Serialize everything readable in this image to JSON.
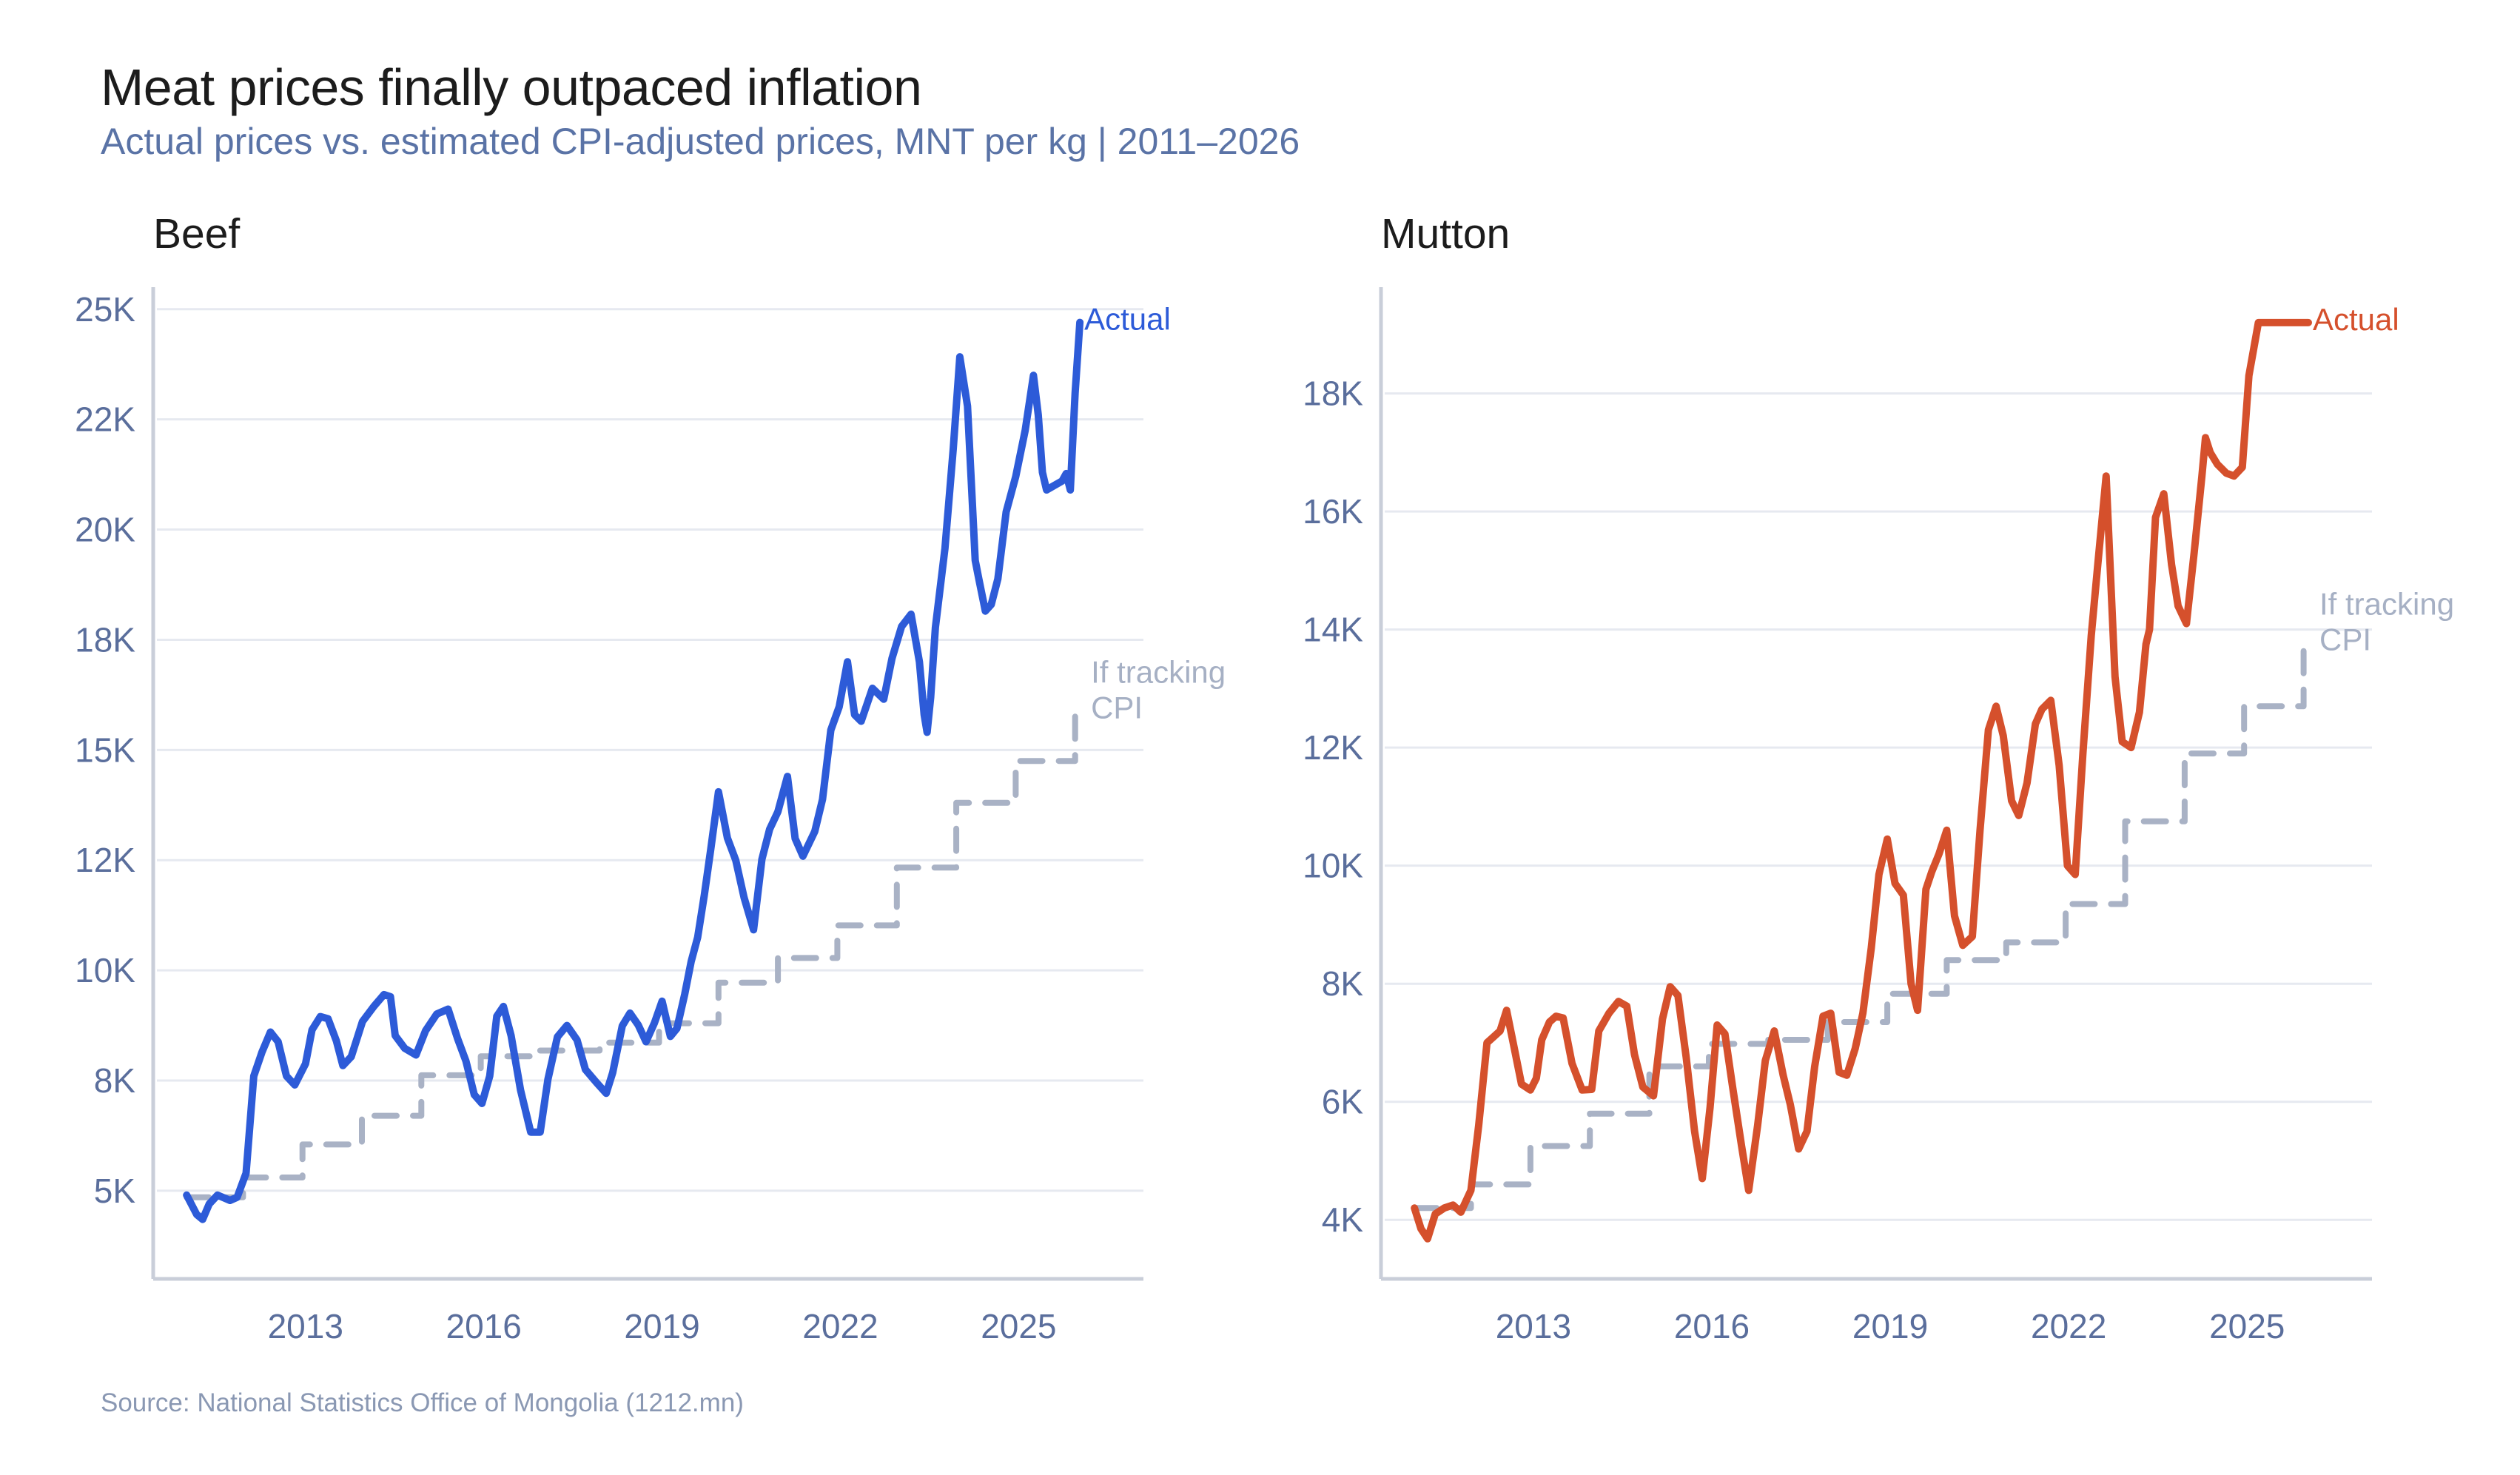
{
  "title": "Meat prices finally outpaced inflation",
  "subtitle": "Actual prices vs. estimated CPI-adjusted prices, MNT per kg | 2011–2026",
  "source": "Source: National Statistics Office of Mongolia (1212.mn)",
  "colors": {
    "beef": "#2d5bd8",
    "mutton": "#d5502c",
    "cpi": "#a9b2c5",
    "tick_text": "#5a6e9c",
    "subtitle": "#5a73a6"
  },
  "chart_data": [
    {
      "type": "line",
      "title": "Beef",
      "xlabel": "",
      "ylabel": "",
      "xlim": [
        2010.5,
        2027.1
      ],
      "ylim": [
        3000,
        25500
      ],
      "grid": true,
      "legend": "direct labels at line ends (right)",
      "x_ticks": [
        2013,
        2016,
        2019,
        2022,
        2025
      ],
      "x_tick_labels": [
        "2013",
        "2016",
        "2019",
        "2022",
        "2025"
      ],
      "y_ticks": [
        5000,
        7500,
        10000,
        12500,
        15000,
        17500,
        20000,
        22500,
        25000
      ],
      "y_tick_labels": [
        "5K",
        "8K",
        "10K",
        "12K",
        "15K",
        "18K",
        "20K",
        "22K",
        "25K"
      ],
      "series": [
        {
          "name": "Actual",
          "label": "Actual",
          "style": "solid",
          "x": [
            2011.0,
            2011.17,
            2011.27,
            2011.38,
            2011.52,
            2011.73,
            2011.85,
            2012.0,
            2012.13,
            2012.27,
            2012.41,
            2012.54,
            2012.68,
            2012.82,
            2013.0,
            2013.11,
            2013.25,
            2013.38,
            2013.52,
            2013.63,
            2013.77,
            2013.96,
            2014.15,
            2014.32,
            2014.43,
            2014.51,
            2014.67,
            2014.86,
            2015.02,
            2015.21,
            2015.4,
            2015.56,
            2015.7,
            2015.84,
            2015.97,
            2016.1,
            2016.22,
            2016.33,
            2016.46,
            2016.62,
            2016.79,
            2016.95,
            2017.08,
            2017.24,
            2017.4,
            2017.57,
            2017.71,
            2017.9,
            2018.06,
            2018.17,
            2018.33,
            2018.46,
            2018.6,
            2018.73,
            2018.87,
            2019.0,
            2019.14,
            2019.25,
            2019.38,
            2019.49,
            2019.6,
            2019.71,
            2019.82,
            2019.95,
            2020.1,
            2020.24,
            2020.38,
            2020.54,
            2020.68,
            2020.81,
            2020.95,
            2021.11,
            2021.24,
            2021.37,
            2021.57,
            2021.7,
            2021.84,
            2021.98,
            2022.12,
            2022.24,
            2022.35,
            2022.54,
            2022.73,
            2022.87,
            2023.03,
            2023.19,
            2023.33,
            2023.41,
            2023.46,
            2023.52,
            2023.6,
            2023.76,
            2023.9,
            2024.01,
            2024.14,
            2024.27,
            2024.33,
            2024.44,
            2024.54,
            2024.65,
            2024.79,
            2024.95,
            2025.11,
            2025.25,
            2025.33,
            2025.4,
            2025.47,
            2025.6,
            2025.73,
            2025.8,
            2025.87,
            2025.95,
            2026.03
          ],
          "values": [
            4900,
            4460,
            4350,
            4700,
            4900,
            4780,
            4850,
            5400,
            7600,
            8150,
            8600,
            8380,
            7600,
            7400,
            7880,
            8650,
            8950,
            8900,
            8400,
            7840,
            8040,
            8840,
            9180,
            9450,
            9400,
            8520,
            8230,
            8080,
            8630,
            9010,
            9120,
            8450,
            7940,
            7180,
            6980,
            7600,
            8960,
            9180,
            8520,
            7280,
            6330,
            6330,
            7530,
            8490,
            8750,
            8420,
            7750,
            7450,
            7210,
            7680,
            8740,
            9030,
            8760,
            8380,
            8800,
            9300,
            8500,
            8680,
            9450,
            10200,
            10750,
            11700,
            12750,
            14050,
            13000,
            12500,
            11650,
            10920,
            12520,
            13200,
            13600,
            14400,
            12990,
            12590,
            13150,
            13880,
            15450,
            15980,
            17000,
            15800,
            15650,
            16400,
            16150,
            17080,
            17800,
            18080,
            17000,
            15800,
            15400,
            16190,
            17780,
            19570,
            21830,
            23920,
            22800,
            19300,
            18880,
            18150,
            18300,
            18880,
            20400,
            21200,
            22250,
            23500,
            22600,
            21300,
            20900,
            21000,
            21100,
            21270,
            20900,
            23100,
            24700
          ]
        },
        {
          "name": "If tracking CPI",
          "label": "If tracking CPI",
          "style": "dashed-step",
          "x": [
            2011.0,
            2011.95,
            2011.95,
            2012.95,
            2012.95,
            2013.95,
            2013.95,
            2014.95,
            2014.95,
            2015.95,
            2015.95,
            2016.95,
            2016.95,
            2017.95,
            2017.95,
            2018.95,
            2018.95,
            2019.95,
            2019.95,
            2020.95,
            2020.95,
            2021.95,
            2021.95,
            2022.95,
            2022.95,
            2023.95,
            2023.95,
            2024.95,
            2024.95,
            2025.95,
            2025.95,
            2026.03
          ],
          "values": [
            4850,
            4850,
            5300,
            5300,
            6050,
            6050,
            6700,
            6700,
            7620,
            7620,
            8050,
            8050,
            8180,
            8180,
            8360,
            8360,
            8800,
            8800,
            9720,
            9720,
            10280,
            10280,
            11020,
            11020,
            12330,
            12330,
            13800,
            13800,
            14750,
            14750,
            15850,
            15850
          ]
        }
      ]
    },
    {
      "type": "line",
      "title": "Mutton",
      "xlabel": "",
      "ylabel": "",
      "xlim": [
        2010.5,
        2027.1
      ],
      "ylim": [
        3000,
        19800
      ],
      "grid": true,
      "legend": "direct labels at line ends (right)",
      "x_ticks": [
        2013,
        2016,
        2019,
        2022,
        2025
      ],
      "x_tick_labels": [
        "2013",
        "2016",
        "2019",
        "2022",
        "2025"
      ],
      "y_ticks": [
        4000,
        6000,
        8000,
        10000,
        12000,
        14000,
        16000,
        18000
      ],
      "y_tick_labels": [
        "4K",
        "6K",
        "8K",
        "10K",
        "12K",
        "14K",
        "16K",
        "18K"
      ],
      "series": [
        {
          "name": "Actual",
          "label": "Actual",
          "style": "solid",
          "x": [
            2011.0,
            2011.11,
            2011.22,
            2011.35,
            2011.5,
            2011.65,
            2011.78,
            2011.95,
            2012.08,
            2012.22,
            2012.33,
            2012.44,
            2012.55,
            2012.66,
            2012.8,
            2012.95,
            2013.05,
            2013.14,
            2013.27,
            2013.38,
            2013.5,
            2013.65,
            2013.82,
            2013.98,
            2014.1,
            2014.27,
            2014.43,
            2014.57,
            2014.7,
            2014.84,
            2015.02,
            2015.17,
            2015.3,
            2015.43,
            2015.57,
            2015.71,
            2015.84,
            2015.97,
            2016.09,
            2016.22,
            2016.35,
            2016.5,
            2016.62,
            2016.77,
            2016.9,
            2017.05,
            2017.2,
            2017.32,
            2017.46,
            2017.6,
            2017.73,
            2017.87,
            2018.0,
            2018.14,
            2018.27,
            2018.41,
            2018.54,
            2018.68,
            2018.81,
            2018.95,
            2019.08,
            2019.22,
            2019.35,
            2019.46,
            2019.6,
            2019.7,
            2019.82,
            2019.95,
            2020.08,
            2020.22,
            2020.38,
            2020.51,
            2020.65,
            2020.78,
            2020.9,
            2021.04,
            2021.16,
            2021.3,
            2021.44,
            2021.55,
            2021.7,
            2021.84,
            2021.98,
            2022.11,
            2022.24,
            2022.38,
            2022.49,
            2022.63,
            2022.78,
            2022.9,
            2023.05,
            2023.19,
            2023.3,
            2023.36,
            2023.46,
            2023.6,
            2023.73,
            2023.84,
            2023.98,
            2024.11,
            2024.24,
            2024.3,
            2024.38,
            2024.5,
            2024.65,
            2024.78,
            2024.92,
            2025.03,
            2025.19,
            2025.27,
            2025.38,
            2025.51,
            2025.64,
            2025.78,
            2025.91,
            2025.97,
            2026.03
          ],
          "values": [
            4200,
            3850,
            3680,
            4100,
            4200,
            4250,
            4130,
            4500,
            5600,
            7000,
            7100,
            7200,
            7550,
            7000,
            6300,
            6200,
            6400,
            7050,
            7350,
            7450,
            7420,
            6650,
            6200,
            6210,
            7200,
            7500,
            7700,
            7620,
            6800,
            6250,
            6100,
            7400,
            7950,
            7800,
            6750,
            5500,
            4700,
            5900,
            7300,
            7150,
            6250,
            5250,
            4500,
            5600,
            6700,
            7200,
            6450,
            5950,
            5200,
            5500,
            6600,
            7450,
            7500,
            6500,
            6450,
            6900,
            7500,
            8600,
            9850,
            10450,
            9700,
            9500,
            8000,
            7550,
            9600,
            9900,
            10200,
            10600,
            9150,
            8650,
            8800,
            10600,
            12300,
            12700,
            12200,
            11100,
            10850,
            11400,
            12400,
            12650,
            12800,
            11700,
            10000,
            9850,
            11900,
            13900,
            15100,
            16600,
            13200,
            12100,
            12000,
            12600,
            13750,
            14000,
            15900,
            16300,
            15100,
            14400,
            14100,
            15300,
            16600,
            17250,
            17000,
            16800,
            16650,
            16600,
            16750,
            18300,
            19200,
            19200,
            19200,
            19200,
            19200,
            19200,
            19200,
            19200,
            19200
          ]
        },
        {
          "name": "If tracking CPI",
          "label": "If tracking CPI",
          "style": "dashed-step",
          "x": [
            2011.0,
            2011.95,
            2011.95,
            2012.95,
            2012.95,
            2013.95,
            2013.95,
            2014.95,
            2014.95,
            2015.95,
            2015.95,
            2016.95,
            2016.95,
            2017.95,
            2017.95,
            2018.95,
            2018.95,
            2019.95,
            2019.95,
            2020.95,
            2020.95,
            2021.95,
            2021.95,
            2022.95,
            2022.95,
            2023.95,
            2023.95,
            2024.95,
            2024.95,
            2025.95,
            2025.95,
            2026.03
          ],
          "values": [
            4200,
            4200,
            4600,
            4600,
            5250,
            5250,
            5800,
            5800,
            6600,
            6600,
            6980,
            6980,
            7050,
            7050,
            7350,
            7350,
            7830,
            7830,
            8400,
            8400,
            8700,
            8700,
            9350,
            9350,
            10750,
            10750,
            11900,
            11900,
            12700,
            12700,
            13750,
            13750
          ]
        }
      ]
    }
  ]
}
